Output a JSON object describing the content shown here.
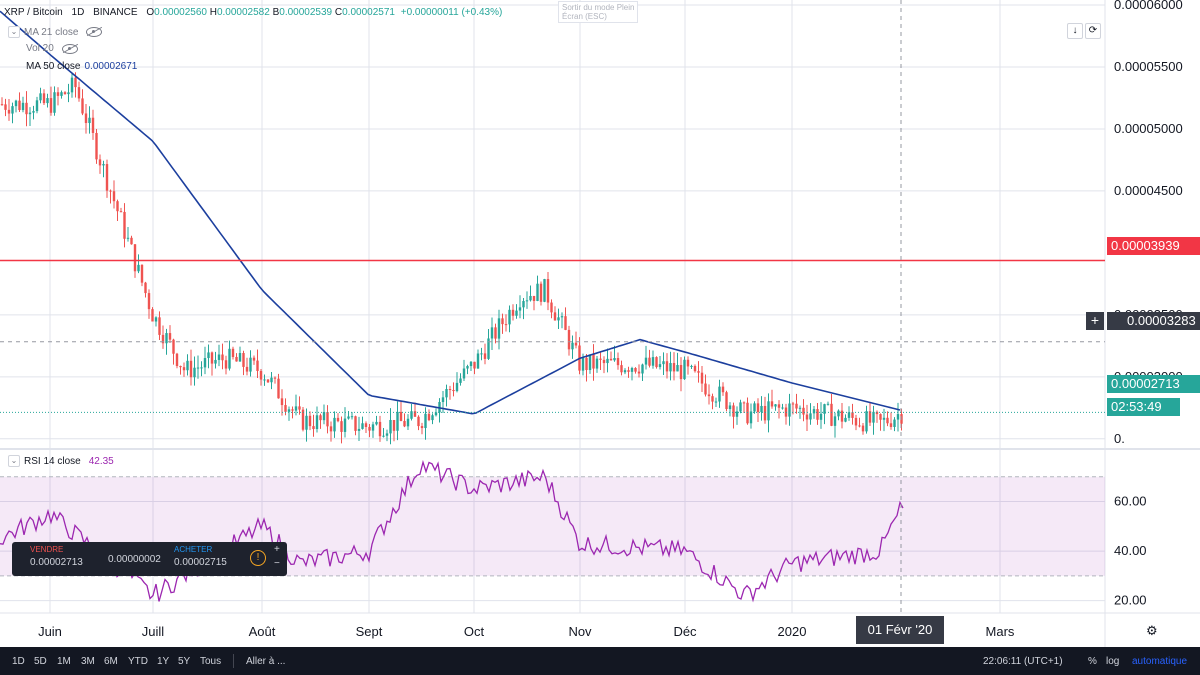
{
  "header": {
    "symbol": "XRP / Bitcoin",
    "interval": "1D",
    "exchange": "BINANCE",
    "o_label": "O",
    "o_value": "0.00002560",
    "h_label": "H",
    "h_value": "0.00002582",
    "b_label": "B",
    "b_value": "0.00002539",
    "c_label": "C",
    "c_value": "0.00002571",
    "change": "+0.00000011 (+0.43%)"
  },
  "fullscreen_hint": {
    "line1": "Sortir du mode Plein",
    "line2": "Écran (ESC)"
  },
  "indicators": {
    "ma21": "MA 21 close",
    "vol": "Vol 20",
    "ma50": "MA 50 close",
    "ma50_value": "0.00002671"
  },
  "rsi_legend": {
    "label": "RSI 14 close",
    "value": "42.35"
  },
  "price_axis": {
    "ticks": [
      "0.00006000",
      "0.00005500",
      "0.00005000",
      "0.00004500",
      "0.00003500",
      "0.00003000",
      "0."
    ],
    "resistance_label": "0.00003939",
    "crosshair_label": "0.00003283",
    "last_price_label": "0.00002713",
    "countdown": "02:53:49"
  },
  "rsi_axis": {
    "ticks": [
      "60.00",
      "40.00",
      "20.00"
    ]
  },
  "time_axis": {
    "labels": [
      "Juin",
      "Juill",
      "Août",
      "Sept",
      "Oct",
      "Nov",
      "Déc",
      "2020",
      "Mars"
    ],
    "crosshair_date": "01 Févr '20"
  },
  "trade_panel": {
    "sell_label": "VENDRE",
    "sell_price": "0.00002713",
    "spread": "0.00000002",
    "buy_label": "ACHETER",
    "buy_price": "0.00002715"
  },
  "bottom_bar": {
    "ranges": [
      "1D",
      "5D",
      "1M",
      "3M",
      "6M",
      "YTD",
      "1Y",
      "5Y",
      "Tous"
    ],
    "goto": "Aller à ...",
    "clock": "22:06:11 (UTC+1)",
    "percent": "%",
    "log": "log",
    "auto": "automatique"
  },
  "colors": {
    "up": "#26a69a",
    "down": "#ef5350",
    "ma50": "#1c3f9e",
    "rsi": "#9c27b0",
    "resistance": "#f23645"
  },
  "chart_data": {
    "type": "candlestick",
    "instrument": "XRP / Bitcoin",
    "price_ylim": [
      2.45e-05,
      6e-05
    ],
    "resistance": 3.939e-05,
    "crosshair_price": 3.283e-05,
    "last_price": 2.713e-05,
    "rsi_ylim": [
      15,
      80
    ],
    "rsi_band": [
      30,
      70
    ],
    "price_anchors": [
      {
        "date": "Juin",
        "price": 5.2e-05
      },
      {
        "date": "mid-Juin",
        "price": 5.35e-05
      },
      {
        "date": "Juill",
        "price": 3.5e-05
      },
      {
        "date": "mid-Juill",
        "price": 3.05e-05
      },
      {
        "date": "late-Juill",
        "price": 3.15e-05
      },
      {
        "date": "Août",
        "price": 3.05e-05
      },
      {
        "date": "mid-Août",
        "price": 2.65e-05
      },
      {
        "date": "Sept",
        "price": 2.6e-05
      },
      {
        "date": "mid-Sept",
        "price": 2.65e-05
      },
      {
        "date": "Oct",
        "price": 3.1e-05
      },
      {
        "date": "mid-Oct",
        "price": 3.65e-05
      },
      {
        "date": "late-Oct",
        "price": 3.7e-05
      },
      {
        "date": "Nov",
        "price": 3.1e-05
      },
      {
        "date": "mid-Nov",
        "price": 3.1e-05
      },
      {
        "date": "Déc",
        "price": 3.05e-05
      },
      {
        "date": "mid-Déc",
        "price": 2.7e-05
      },
      {
        "date": "2020",
        "price": 2.75e-05
      },
      {
        "date": "late-Jan",
        "price": 2.62e-05
      },
      {
        "date": "01 Févr '20",
        "price": 2.71e-05
      }
    ],
    "ma50_anchors": [
      {
        "date": "start",
        "price": 5.95e-05
      },
      {
        "date": "Juin",
        "price": 5.6e-05
      },
      {
        "date": "Juill",
        "price": 4.9e-05
      },
      {
        "date": "Août",
        "price": 3.7e-05
      },
      {
        "date": "Sept",
        "price": 2.85e-05
      },
      {
        "date": "Oct",
        "price": 2.7e-05
      },
      {
        "date": "Nov",
        "price": 3.15e-05
      },
      {
        "date": "mid-Nov",
        "price": 3.3e-05
      },
      {
        "date": "Déc",
        "price": 3.2e-05
      },
      {
        "date": "2020",
        "price": 2.95e-05
      },
      {
        "date": "01 Févr '20",
        "price": 2.73e-05
      }
    ],
    "rsi_anchors": [
      {
        "date": "start",
        "rsi": 45
      },
      {
        "date": "Juin",
        "rsi": 55
      },
      {
        "date": "Juill",
        "rsi": 22
      },
      {
        "date": "Août",
        "rsi": 50
      },
      {
        "date": "mid-Août",
        "rsi": 35
      },
      {
        "date": "Sept",
        "rsi": 40
      },
      {
        "date": "mid-Sept",
        "rsi": 75
      },
      {
        "date": "Oct",
        "rsi": 65
      },
      {
        "date": "late-Oct",
        "rsi": 70
      },
      {
        "date": "Nov",
        "rsi": 43
      },
      {
        "date": "Déc",
        "rsi": 40
      },
      {
        "date": "mid-Déc",
        "rsi": 22
      },
      {
        "date": "2020",
        "rsi": 35
      },
      {
        "date": "late-Jan",
        "rsi": 40
      },
      {
        "date": "01 Févr '20",
        "rsi": 57
      }
    ]
  }
}
